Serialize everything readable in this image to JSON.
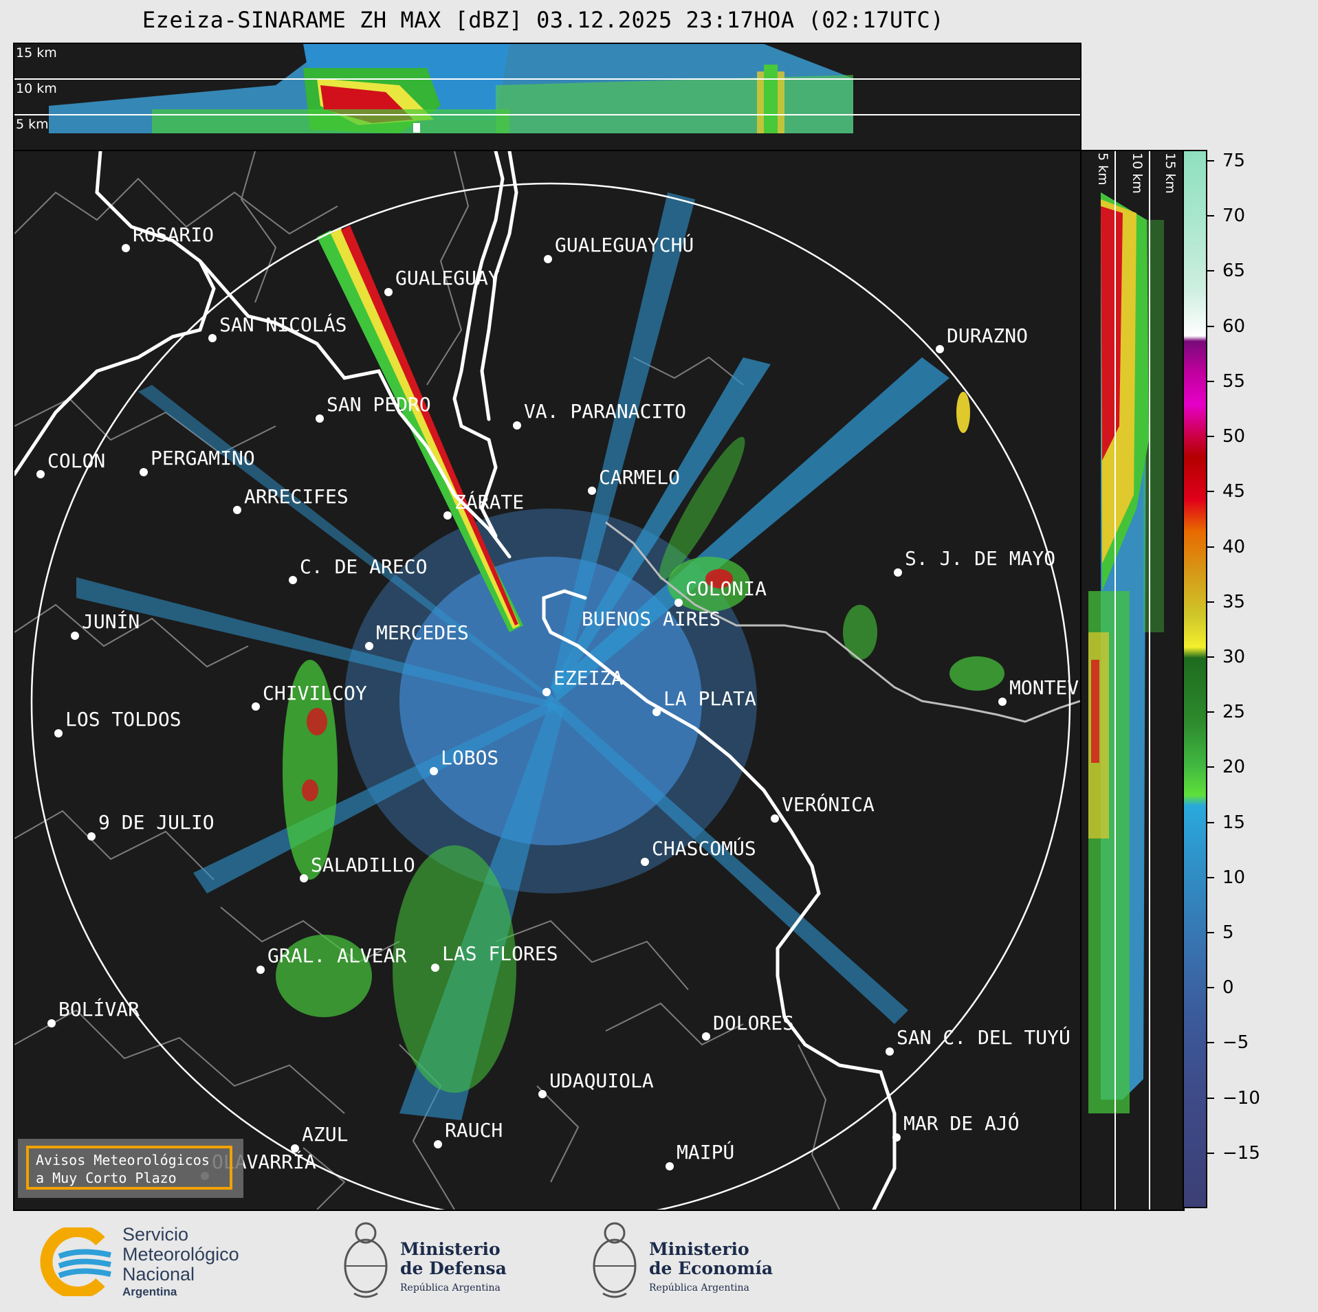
{
  "title": "Ezeiza-SINARAME ZH MAX [dBZ] 03.12.2025 23:17HOA (02:17UTC)",
  "profile_top": {
    "labels": [
      "15 km",
      "10 km",
      "5 km"
    ]
  },
  "profile_side": {
    "labels": [
      "5 km",
      "10 km",
      "15 km"
    ]
  },
  "colorbar": {
    "unit": "dBZ",
    "ticks": [
      "75",
      "70",
      "65",
      "60",
      "55",
      "50",
      "45",
      "40",
      "35",
      "30",
      "25",
      "20",
      "15",
      "10",
      "5",
      "0",
      "−5",
      "−10",
      "−15"
    ],
    "range": [
      -20,
      76
    ]
  },
  "cities": [
    {
      "name": "ROSARIO"
    },
    {
      "name": "GUALEGUAYCHÚ"
    },
    {
      "name": "GUALEGUAY"
    },
    {
      "name": "SAN NICOLÁS"
    },
    {
      "name": "DURAZNO"
    },
    {
      "name": "SAN PEDRO"
    },
    {
      "name": "VA. PARANACITO"
    },
    {
      "name": "COLON"
    },
    {
      "name": "PERGAMINO"
    },
    {
      "name": "CARMELO"
    },
    {
      "name": "ARRECIFES"
    },
    {
      "name": "ZÁRATE"
    },
    {
      "name": "S. J. DE MAYO"
    },
    {
      "name": "C. DE ARECO"
    },
    {
      "name": "COLONIA"
    },
    {
      "name": "JUNÍN"
    },
    {
      "name": "BUENOS AIRES"
    },
    {
      "name": "MERCEDES"
    },
    {
      "name": "MONTEV"
    },
    {
      "name": "EZEIZA"
    },
    {
      "name": "CHIVILCOY"
    },
    {
      "name": "LA PLATA"
    },
    {
      "name": "LOS TOLDOS"
    },
    {
      "name": "LOBOS"
    },
    {
      "name": "VERÓNICA"
    },
    {
      "name": "9 DE JULIO"
    },
    {
      "name": "CHASCOMÚS"
    },
    {
      "name": "SALADILLO"
    },
    {
      "name": "GRAL. ALVEAR"
    },
    {
      "name": "LAS FLORES"
    },
    {
      "name": "BOLÍVAR"
    },
    {
      "name": "DOLORES"
    },
    {
      "name": "SAN C. DEL TUYÚ"
    },
    {
      "name": "UDAQUIOLA"
    },
    {
      "name": "MAR DE AJÓ"
    },
    {
      "name": "AZUL"
    },
    {
      "name": "RAUCH"
    },
    {
      "name": "OLAVARRÍA"
    },
    {
      "name": "MAIPÚ"
    }
  ],
  "warning_box": {
    "line1": "Avisos Meteorológicos",
    "line2": "a Muy Corto Plazo"
  },
  "footer": {
    "smn": {
      "line1": "Servicio",
      "line2": "Meteorológico",
      "line3": "Nacional",
      "line4": "Argentina"
    },
    "defensa": {
      "line1": "Ministerio",
      "line2": "de Defensa",
      "line3": "República Argentina"
    },
    "economia": {
      "line1": "Ministerio",
      "line2": "de Economía",
      "line3": "República Argentina"
    }
  },
  "colors": {
    "background": "#1b1b1b",
    "border_river": "#ffffff",
    "admin_lines": "#7d7d7d",
    "accent_orange": "#f2a100"
  }
}
